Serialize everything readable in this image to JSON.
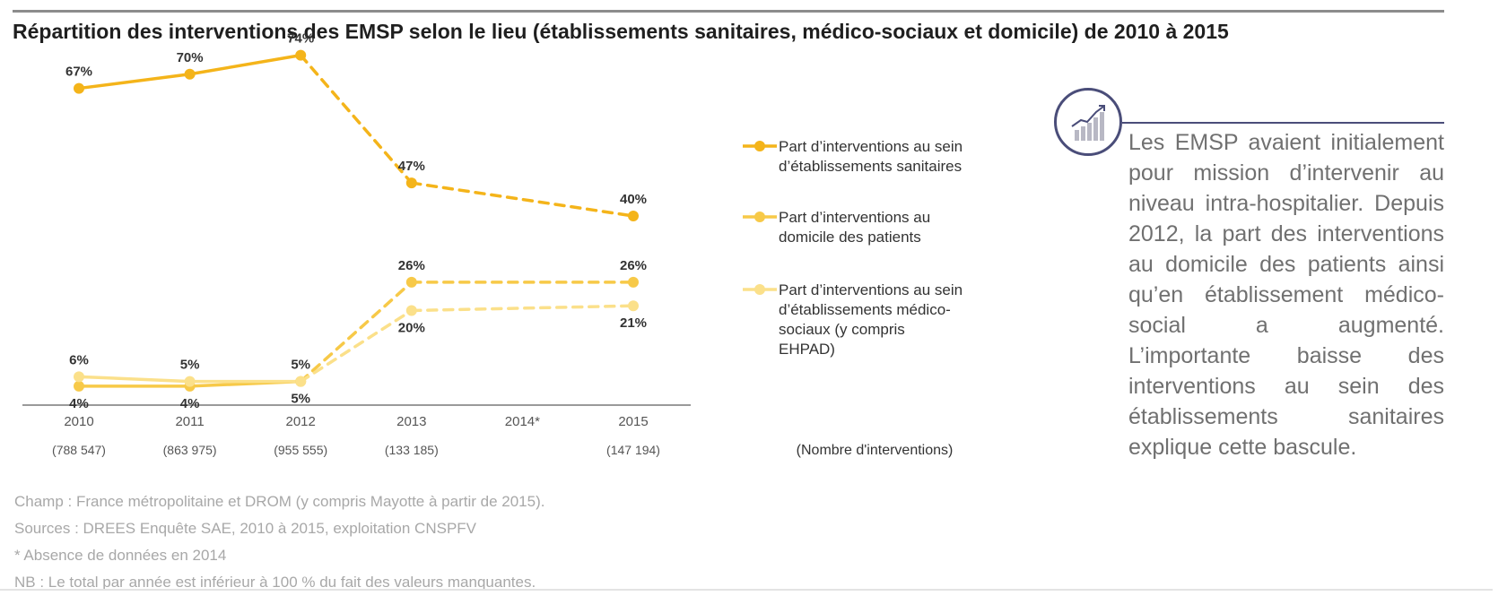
{
  "title": "Répartition des interventions des EMSP selon le lieu (établissements sanitaires, médico-sociaux et domicile) de 2010 à 2015",
  "chart_data": {
    "type": "line",
    "title": "Répartition des interventions des EMSP selon le lieu (établissements sanitaires, médico-sociaux et domicile) de 2010 à 2015",
    "categories": [
      "2010",
      "2011",
      "2012",
      "2013",
      "2014*",
      "2015"
    ],
    "category_subtitles": [
      "(788 547)",
      "(863 975)",
      "(955 555)",
      "(133 185)",
      "",
      "(147 194)"
    ],
    "subtitle_caption": "(Nombre d'interventions)",
    "ylim": [
      0,
      80
    ],
    "grid": false,
    "legend_position": "right",
    "series": [
      {
        "name": "Part d’interventions au sein d’établissements sanitaires",
        "legend_lines": [
          "Part d’interventions au sein",
          "d’établissements sanitaires"
        ],
        "values": [
          67,
          70,
          74,
          47,
          null,
          40
        ],
        "labels": [
          "67%",
          "70%",
          "74%",
          "47%",
          "",
          "40%"
        ],
        "label_position": "above",
        "color": "#f4b41a"
      },
      {
        "name": "Part d’interventions au domicile des patients",
        "legend_lines": [
          "Part d’interventions au",
          "domicile des patients"
        ],
        "values": [
          4,
          4,
          5,
          26,
          null,
          26
        ],
        "labels": [
          "4%",
          "4%",
          "5%",
          "26%",
          "",
          "26%"
        ],
        "label_position": [
          "below",
          "below",
          "below",
          "above",
          "",
          "above"
        ],
        "color": "#f7c948"
      },
      {
        "name": "Part d’interventions au sein d’établissements médico-sociaux (y compris EHPAD)",
        "legend_lines": [
          "Part d’interventions au sein",
          "d’établissements médico-",
          "sociaux (y compris",
          "EHPAD)"
        ],
        "values": [
          6,
          5,
          5,
          20,
          null,
          21
        ],
        "labels": [
          "6%",
          "5%",
          "5%",
          "20%",
          "",
          "21%"
        ],
        "label_position": [
          "above",
          "above",
          "above",
          "below",
          "",
          "below"
        ],
        "color": "#fbe08a"
      }
    ]
  },
  "notes": [
    "Champ : France métropolitaine et DROM (y compris Mayotte à partir de 2015).",
    "Sources : DREES Enquête SAE, 2010 à 2015, exploitation CNSPFV",
    "* Absence de données en 2014",
    "NB : Le total par année est inférieur à 100 % du fait des valeurs manquantes."
  ],
  "callout": {
    "icon": "growth-chart-icon",
    "text": "Les EMSP avaient initialement pour mission d’intervenir au niveau intra-hospitalier. Depuis 2012, la part des interventions au domicile des patients ainsi qu’en établissement médico-social a augmenté. L’importante baisse des interventions au sein des établissements sanitaires explique cette bascule.",
    "colors": {
      "accent": "#4a4d79",
      "text": "#707070"
    }
  }
}
